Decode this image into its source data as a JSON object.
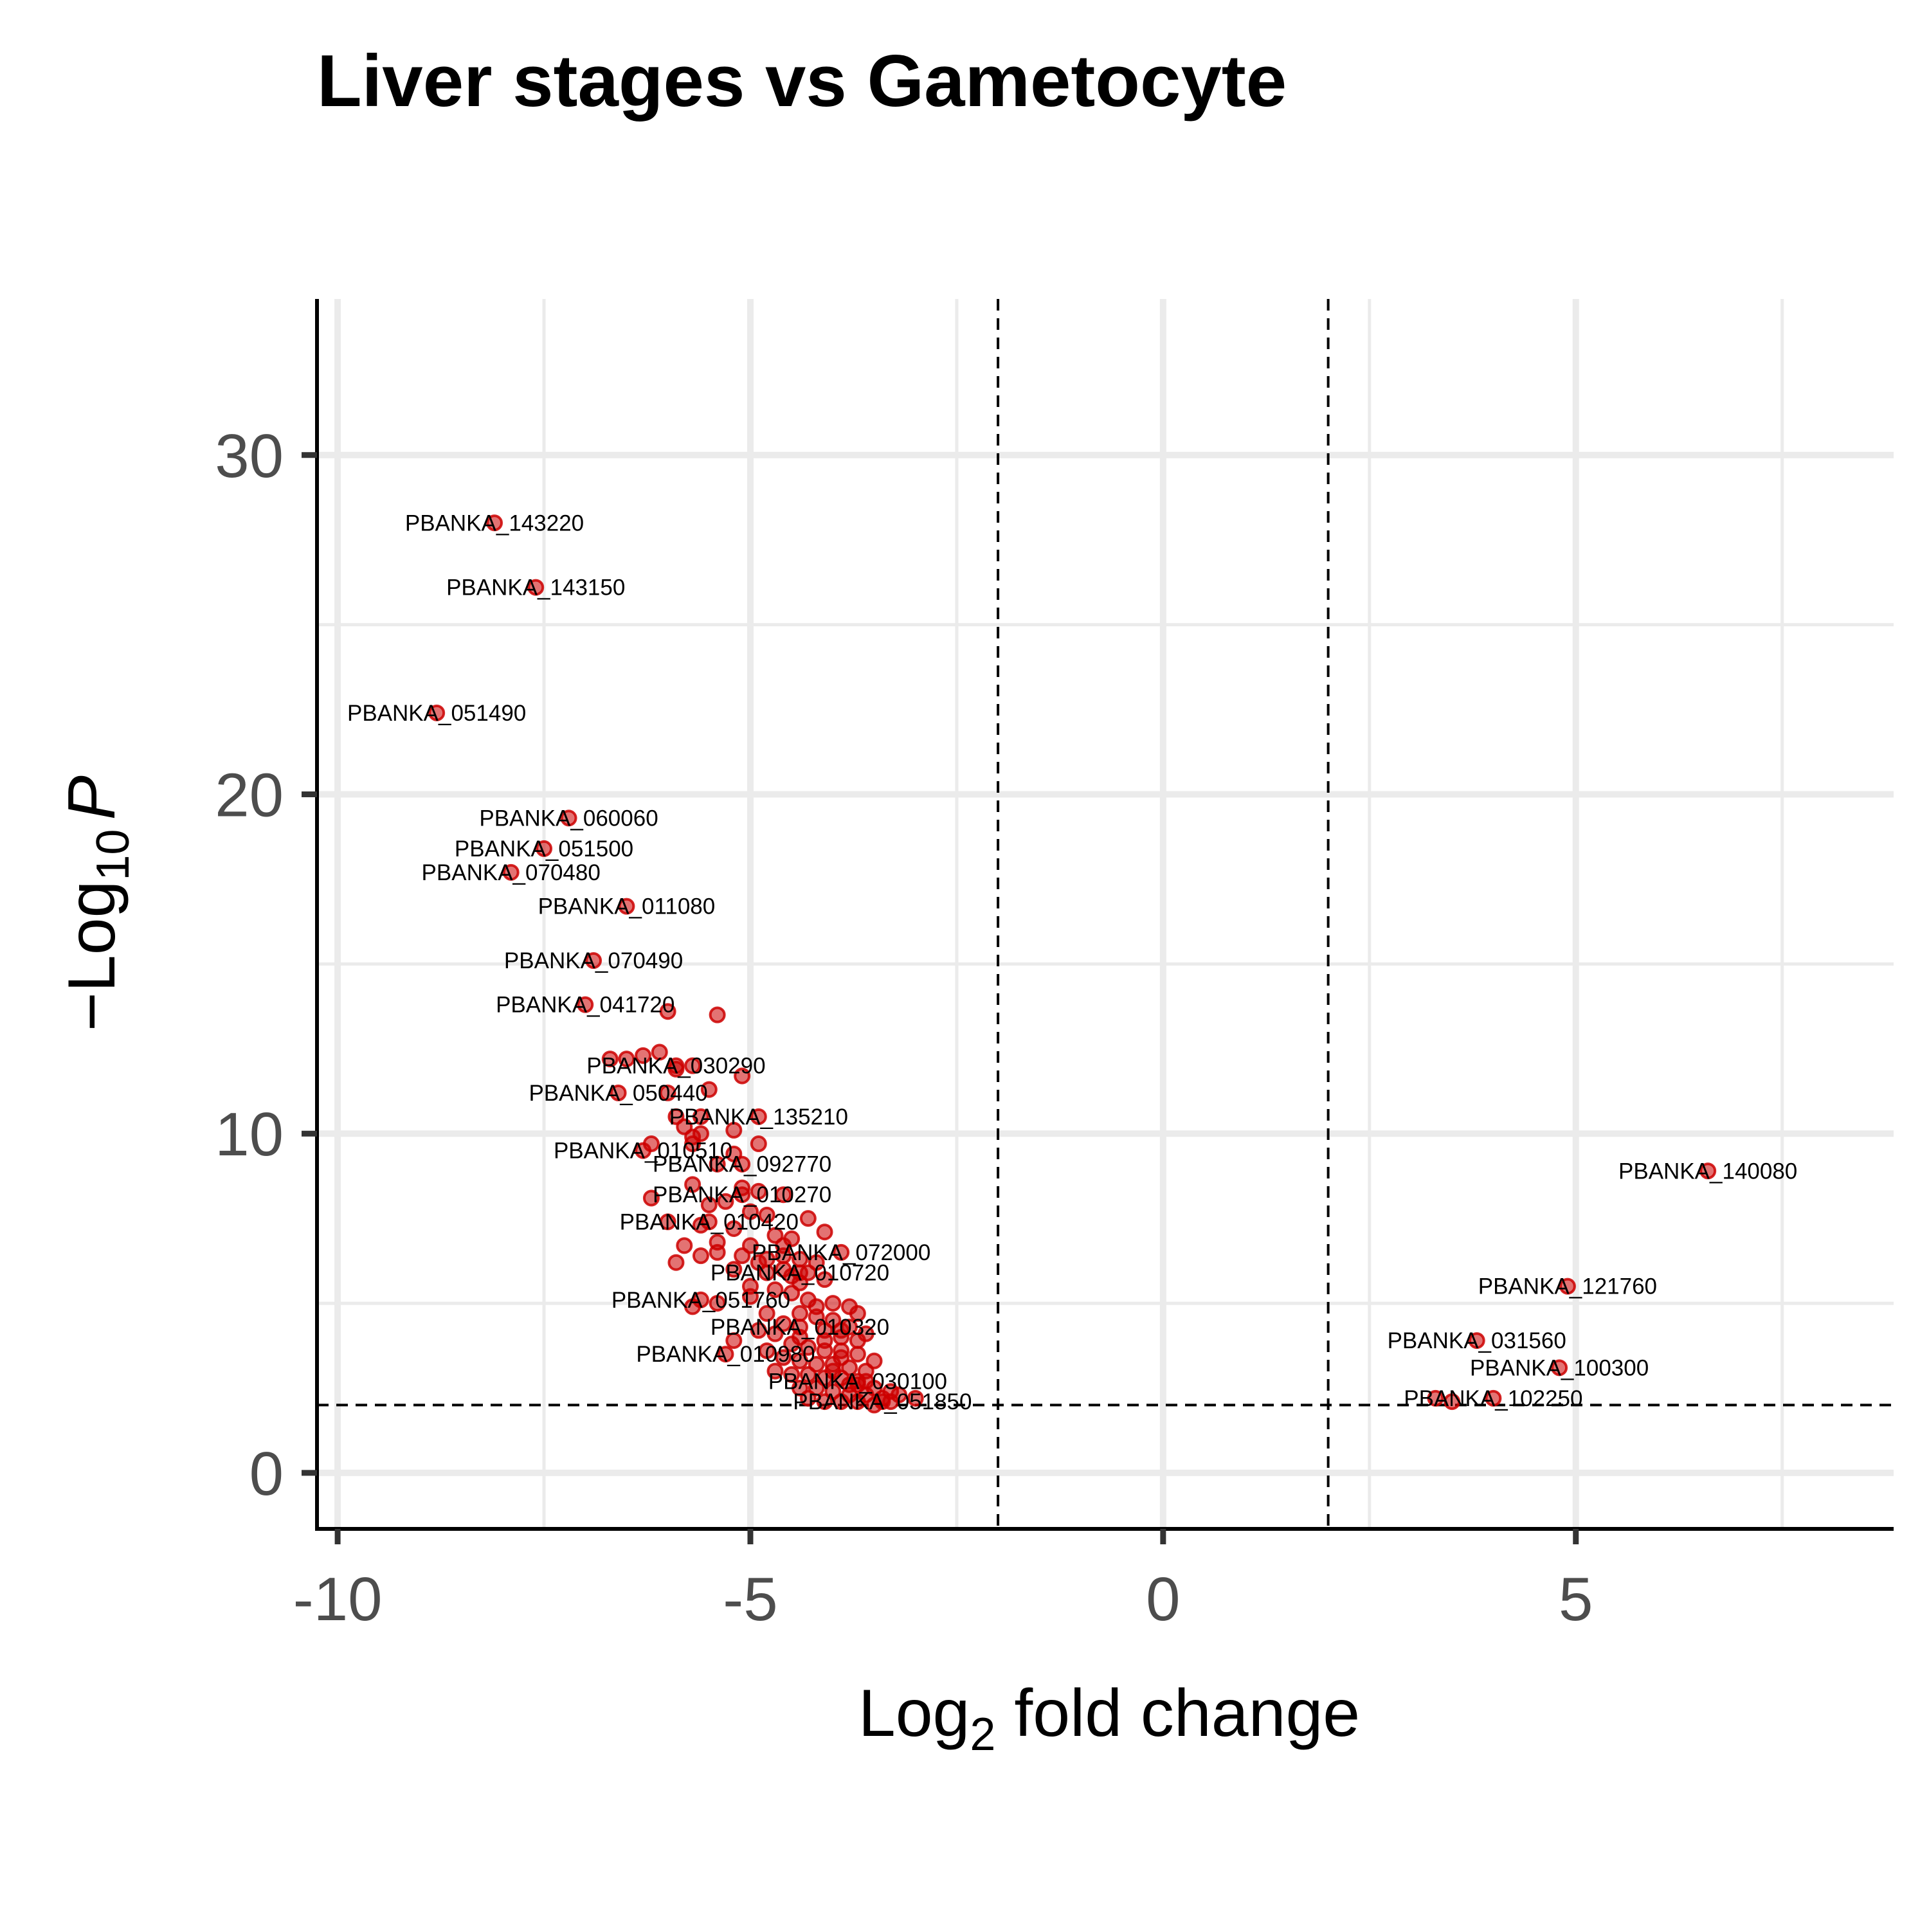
{
  "chart_data": {
    "type": "scatter",
    "title": "Liver stages vs Gametocyte",
    "xlabel": {
      "main": "Log",
      "sub": "2",
      "rest": " fold change"
    },
    "ylabel": {
      "pre": "−Log",
      "sub": "10",
      "italic": "P"
    },
    "xlim": [
      -10.25,
      8.85
    ],
    "ylim": [
      -1.65,
      34.6
    ],
    "x_ticks": [
      -10,
      -5,
      0,
      5
    ],
    "x_tick_labels": [
      "-10",
      "-5",
      "0",
      "5"
    ],
    "y_ticks": [
      0,
      10,
      20,
      30
    ],
    "y_tick_labels": [
      "0",
      "10",
      "20",
      "30"
    ],
    "grid": true,
    "fc_cutoff": 2,
    "p_cutoff": 2,
    "point_color": "#cc0000",
    "labeled_points": [
      {
        "x": -8.1,
        "y": 28.0,
        "label": "PBANKA_143220"
      },
      {
        "x": -7.6,
        "y": 26.1,
        "label": "PBANKA_143150"
      },
      {
        "x": -8.8,
        "y": 22.4,
        "label": "PBANKA_051490"
      },
      {
        "x": -7.2,
        "y": 19.3,
        "label": "PBANKA_060060"
      },
      {
        "x": -7.5,
        "y": 18.4,
        "label": "PBANKA_051500"
      },
      {
        "x": -7.9,
        "y": 17.7,
        "label": "PBANKA_070480"
      },
      {
        "x": -6.5,
        "y": 16.7,
        "label": "PBANKA_011080"
      },
      {
        "x": -6.9,
        "y": 15.1,
        "label": "PBANKA_070490"
      },
      {
        "x": -7.0,
        "y": 13.8,
        "label": "PBANKA_041720"
      },
      {
        "x": -5.9,
        "y": 12.0,
        "label": "PBANKA_030290"
      },
      {
        "x": -6.6,
        "y": 11.2,
        "label": "PBANKA_050440"
      },
      {
        "x": -4.9,
        "y": 10.5,
        "label": "PBANKA_135210"
      },
      {
        "x": -6.3,
        "y": 9.5,
        "label": "PBANKA_010510"
      },
      {
        "x": -5.1,
        "y": 9.1,
        "label": "PBANKA_092770"
      },
      {
        "x": -5.1,
        "y": 8.2,
        "label": "PBANKA_010270"
      },
      {
        "x": -5.5,
        "y": 7.4,
        "label": "PBANKA_010420"
      },
      {
        "x": -3.9,
        "y": 6.5,
        "label": "PBANKA_072000"
      },
      {
        "x": -4.4,
        "y": 5.9,
        "label": "PBANKA_010720"
      },
      {
        "x": -5.6,
        "y": 5.1,
        "label": "PBANKA_051760"
      },
      {
        "x": -4.4,
        "y": 4.3,
        "label": "PBANKA_010320"
      },
      {
        "x": -5.3,
        "y": 3.5,
        "label": "PBANKA_010980"
      },
      {
        "x": -3.7,
        "y": 2.7,
        "label": "PBANKA_030100"
      },
      {
        "x": -3.4,
        "y": 2.1,
        "label": "PBANKA_051850"
      },
      {
        "x": 6.6,
        "y": 8.9,
        "label": "PBANKA_140080"
      },
      {
        "x": 4.9,
        "y": 5.5,
        "label": "PBANKA_121760"
      },
      {
        "x": 3.8,
        "y": 3.9,
        "label": "PBANKA_031560"
      },
      {
        "x": 4.8,
        "y": 3.1,
        "label": "PBANKA_100300"
      },
      {
        "x": 4.0,
        "y": 2.2,
        "label": "PBANKA_102250"
      }
    ],
    "other_points": [
      [
        -5.4,
        13.5
      ],
      [
        -6.0,
        13.6
      ],
      [
        -6.7,
        12.2
      ],
      [
        -6.5,
        12.2
      ],
      [
        -6.3,
        12.3
      ],
      [
        -6.1,
        12.4
      ],
      [
        -5.9,
        11.9
      ],
      [
        -5.7,
        12.0
      ],
      [
        -5.5,
        11.3
      ],
      [
        -5.1,
        11.7
      ],
      [
        -6.0,
        11.2
      ],
      [
        -6.2,
        9.7
      ],
      [
        -5.8,
        10.2
      ],
      [
        -5.6,
        10.5
      ],
      [
        -5.2,
        10.1
      ],
      [
        -5.7,
        9.9
      ],
      [
        -4.9,
        9.7
      ],
      [
        -5.2,
        9.4
      ],
      [
        -5.4,
        9.1
      ],
      [
        -5.7,
        8.5
      ],
      [
        -5.1,
        8.4
      ],
      [
        -4.9,
        8.3
      ],
      [
        -4.6,
        8.2
      ],
      [
        -6.2,
        8.1
      ],
      [
        -5.3,
        8.0
      ],
      [
        -5.5,
        7.9
      ],
      [
        -5.0,
        7.7
      ],
      [
        -4.8,
        7.6
      ],
      [
        -4.3,
        7.5
      ],
      [
        -6.0,
        7.4
      ],
      [
        -5.6,
        7.3
      ],
      [
        -5.2,
        7.2
      ],
      [
        -4.7,
        7.0
      ],
      [
        -4.1,
        7.1
      ],
      [
        -5.4,
        6.8
      ],
      [
        -5.0,
        6.7
      ],
      [
        -4.5,
        6.9
      ],
      [
        -5.8,
        6.7
      ],
      [
        -5.6,
        6.4
      ],
      [
        -5.4,
        6.5
      ],
      [
        -5.1,
        6.4
      ],
      [
        -4.8,
        6.3
      ],
      [
        -4.6,
        6.4
      ],
      [
        -4.4,
        6.3
      ],
      [
        -4.2,
        6.2
      ],
      [
        -5.9,
        6.2
      ],
      [
        -5.2,
        6.0
      ],
      [
        -4.8,
        5.9
      ],
      [
        -4.5,
        5.8
      ],
      [
        -4.3,
        5.9
      ],
      [
        -4.1,
        5.7
      ],
      [
        -5.0,
        5.5
      ],
      [
        -4.7,
        5.4
      ],
      [
        -4.5,
        5.3
      ],
      [
        -4.3,
        5.1
      ],
      [
        -4.0,
        5.0
      ],
      [
        -3.8,
        4.9
      ],
      [
        -5.7,
        4.9
      ],
      [
        -5.4,
        5.0
      ],
      [
        -4.8,
        4.7
      ],
      [
        -4.4,
        4.7
      ],
      [
        -4.2,
        4.6
      ],
      [
        -4.0,
        4.5
      ],
      [
        -3.8,
        4.3
      ],
      [
        -3.6,
        4.1
      ],
      [
        -4.6,
        4.4
      ],
      [
        -4.9,
        4.2
      ],
      [
        -4.1,
        4.2
      ],
      [
        -3.9,
        4.0
      ],
      [
        -3.7,
        3.9
      ],
      [
        -5.2,
        3.9
      ],
      [
        -4.5,
        3.8
      ],
      [
        -4.3,
        3.7
      ],
      [
        -4.1,
        3.6
      ],
      [
        -3.9,
        3.6
      ],
      [
        -3.7,
        3.5
      ],
      [
        -3.5,
        3.3
      ],
      [
        -4.8,
        3.6
      ],
      [
        -4.6,
        3.4
      ],
      [
        -4.4,
        3.3
      ],
      [
        -4.2,
        3.2
      ],
      [
        -4.0,
        3.2
      ],
      [
        -3.8,
        3.1
      ],
      [
        -3.6,
        3.0
      ],
      [
        -4.7,
        3.0
      ],
      [
        -4.5,
        2.9
      ],
      [
        -4.3,
        2.9
      ],
      [
        -4.1,
        2.8
      ],
      [
        -3.9,
        2.8
      ],
      [
        -3.7,
        2.6
      ],
      [
        -3.5,
        2.5
      ],
      [
        -3.3,
        2.4
      ],
      [
        -4.4,
        2.5
      ],
      [
        -4.2,
        2.5
      ],
      [
        -4.0,
        2.4
      ],
      [
        -3.8,
        2.3
      ],
      [
        -3.6,
        2.3
      ],
      [
        -3.4,
        2.2
      ],
      [
        -3.2,
        2.3
      ],
      [
        -4.3,
        2.2
      ],
      [
        -4.1,
        2.1
      ],
      [
        -3.9,
        2.1
      ],
      [
        -3.7,
        2.1
      ],
      [
        -3.5,
        2.0
      ],
      [
        -3.3,
        2.1
      ],
      [
        -3.0,
        2.2
      ],
      [
        -3.6,
        2.7
      ],
      [
        -3.8,
        2.6
      ],
      [
        -4.0,
        3.0
      ],
      [
        -3.9,
        3.4
      ],
      [
        -4.1,
        3.9
      ],
      [
        -4.4,
        4.0
      ],
      [
        -4.7,
        4.1
      ],
      [
        -5.0,
        5.2
      ],
      [
        -4.9,
        6.2
      ],
      [
        -4.6,
        6.0
      ],
      [
        -4.4,
        5.6
      ],
      [
        -4.2,
        4.9
      ],
      [
        -3.7,
        4.7
      ],
      [
        -5.6,
        10.0
      ],
      [
        -5.7,
        9.7
      ],
      [
        -5.9,
        10.5
      ],
      [
        -4.6,
        6.7
      ],
      [
        -3.9,
        4.2
      ],
      [
        3.5,
        2.1
      ],
      [
        3.3,
        2.2
      ]
    ]
  }
}
